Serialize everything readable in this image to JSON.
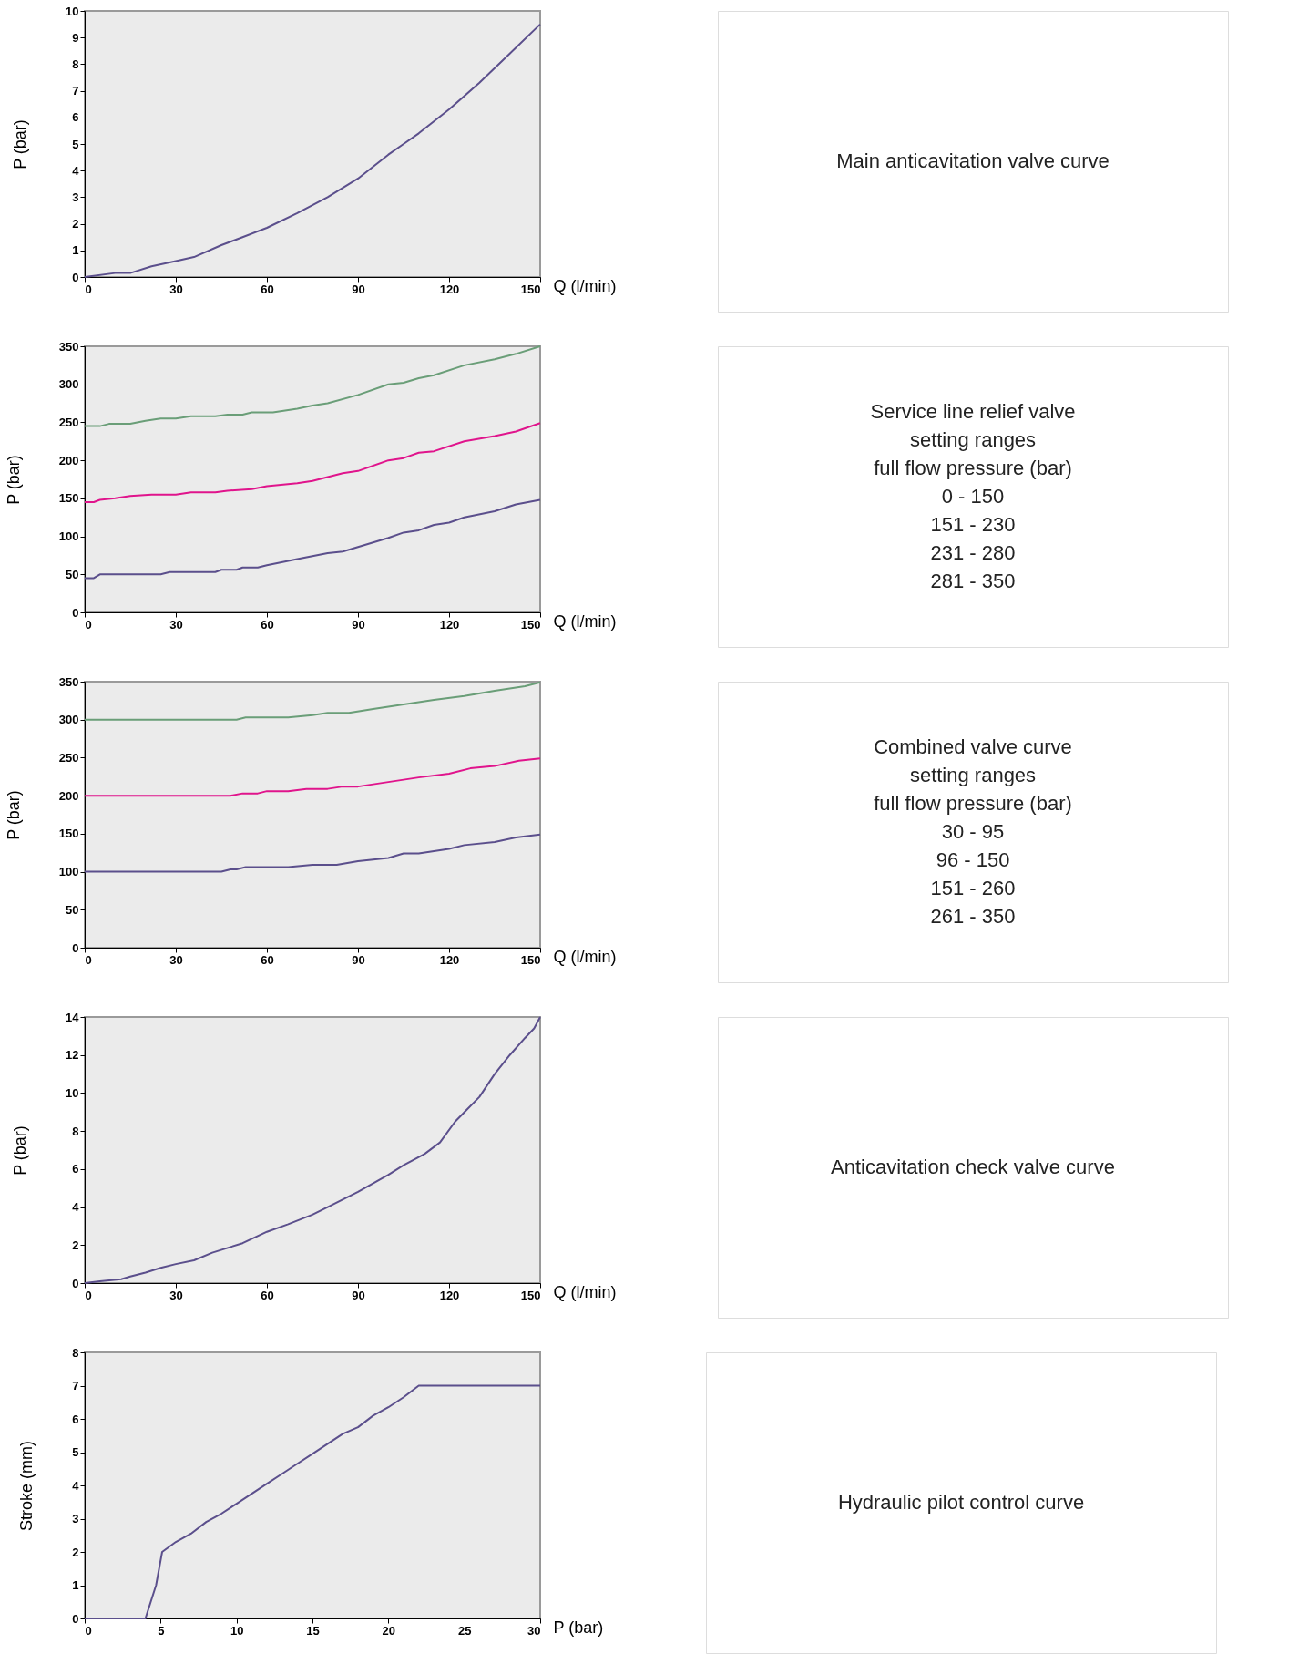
{
  "chart_data": [
    {
      "type": "line",
      "xlabel": "Q (l/min)",
      "ylabel": "P (bar)",
      "xlim": [
        0,
        150
      ],
      "ylim": [
        0,
        10
      ],
      "xticks": [
        0,
        30,
        60,
        90,
        120,
        150
      ],
      "yticks": [
        0,
        1,
        2,
        3,
        4,
        5,
        6,
        7,
        8,
        9,
        10
      ],
      "grid": false,
      "legend": false,
      "series": [
        {
          "color": "#5b4f8c",
          "x": [
            0,
            10,
            15,
            22,
            30,
            36,
            45,
            52,
            60,
            70,
            80,
            90,
            100,
            105,
            110,
            120,
            130,
            140,
            150
          ],
          "values": [
            0,
            0.15,
            0.15,
            0.4,
            0.6,
            0.75,
            1.2,
            1.5,
            1.85,
            2.4,
            3.0,
            3.7,
            4.6,
            5.0,
            5.4,
            6.3,
            7.3,
            8.4,
            9.5
          ]
        }
      ]
    },
    {
      "type": "other",
      "annotations": [
        "Main anticavitation valve curve"
      ]
    },
    {
      "type": "line",
      "xlabel": "Q (l/min)",
      "ylabel": "P (bar)",
      "xlim": [
        0,
        150
      ],
      "ylim": [
        0,
        350
      ],
      "xticks": [
        0,
        30,
        60,
        90,
        120,
        150
      ],
      "yticks": [
        0,
        50,
        100,
        150,
        200,
        250,
        300,
        350
      ],
      "grid": false,
      "legend": false,
      "series": [
        {
          "color": "#5b4f8c",
          "x": [
            0,
            3,
            5,
            25,
            28,
            43,
            45,
            50,
            52,
            57,
            60,
            70,
            80,
            85,
            90,
            100,
            105,
            110,
            115,
            120,
            125,
            135,
            142,
            150
          ],
          "values": [
            45,
            45,
            50,
            50,
            53,
            53,
            56,
            56,
            59,
            59,
            62,
            70,
            78,
            80,
            86,
            98,
            105,
            108,
            115,
            118,
            125,
            133,
            142,
            148
          ]
        },
        {
          "color": "#e0148c",
          "x": [
            0,
            3,
            5,
            10,
            15,
            22,
            30,
            35,
            43,
            47,
            55,
            60,
            70,
            75,
            85,
            90,
            100,
            105,
            110,
            115,
            125,
            135,
            142,
            150
          ],
          "values": [
            145,
            145,
            148,
            150,
            153,
            155,
            155,
            158,
            158,
            160,
            162,
            166,
            170,
            173,
            183,
            186,
            200,
            203,
            210,
            212,
            225,
            232,
            238,
            249
          ]
        },
        {
          "color": "#6a9e78",
          "x": [
            0,
            5,
            8,
            15,
            20,
            25,
            30,
            35,
            43,
            47,
            52,
            55,
            62,
            70,
            75,
            80,
            90,
            100,
            105,
            110,
            115,
            125,
            135,
            142,
            150
          ],
          "values": [
            245,
            245,
            248,
            248,
            252,
            255,
            255,
            258,
            258,
            260,
            260,
            263,
            263,
            268,
            272,
            275,
            286,
            300,
            302,
            308,
            312,
            325,
            333,
            340,
            350
          ]
        }
      ]
    },
    {
      "type": "other",
      "annotations": [
        "Service line relief valve",
        "setting ranges",
        "full flow pressure (bar)",
        "0 - 150",
        "151 - 230",
        "231 - 280",
        "281 - 350"
      ]
    },
    {
      "type": "line",
      "xlabel": "Q (l/min)",
      "ylabel": "P (bar)",
      "xlim": [
        0,
        150
      ],
      "ylim": [
        0,
        350
      ],
      "xticks": [
        0,
        30,
        60,
        90,
        120,
        150
      ],
      "yticks": [
        0,
        50,
        100,
        150,
        200,
        250,
        300,
        350
      ],
      "grid": false,
      "legend": false,
      "series": [
        {
          "color": "#5b4f8c",
          "x": [
            0,
            45,
            48,
            50,
            53,
            67,
            75,
            83,
            90,
            100,
            105,
            110,
            120,
            125,
            135,
            142,
            150
          ],
          "values": [
            100,
            100,
            103,
            103,
            106,
            106,
            109,
            109,
            114,
            118,
            124,
            124,
            130,
            135,
            139,
            145,
            149
          ]
        },
        {
          "color": "#e0148c",
          "x": [
            0,
            48,
            52,
            57,
            60,
            67,
            73,
            80,
            85,
            90,
            100,
            110,
            120,
            127,
            135,
            143,
            150
          ],
          "values": [
            200,
            200,
            203,
            203,
            206,
            206,
            209,
            209,
            212,
            212,
            218,
            224,
            229,
            236,
            239,
            246,
            249
          ]
        },
        {
          "color": "#6a9e78",
          "x": [
            0,
            50,
            53,
            67,
            75,
            80,
            87,
            95,
            105,
            115,
            125,
            135,
            145,
            150
          ],
          "values": [
            300,
            300,
            303,
            303,
            306,
            309,
            309,
            314,
            320,
            326,
            331,
            338,
            344,
            349
          ]
        }
      ]
    },
    {
      "type": "other",
      "annotations": [
        "Combined valve curve",
        "setting ranges",
        "full flow pressure (bar)",
        "30 - 95",
        "96 - 150",
        "151 - 260",
        "261 - 350"
      ]
    },
    {
      "type": "line",
      "xlabel": "Q (l/min)",
      "ylabel": "P (bar)",
      "xlim": [
        0,
        150
      ],
      "ylim": [
        0,
        14
      ],
      "xticks": [
        0,
        30,
        60,
        90,
        120,
        150
      ],
      "yticks": [
        0,
        2,
        4,
        6,
        8,
        10,
        12,
        14
      ],
      "grid": false,
      "legend": false,
      "series": [
        {
          "color": "#5b4f8c",
          "x": [
            0,
            5,
            12,
            15,
            20,
            25,
            30,
            36,
            42,
            52,
            60,
            67,
            75,
            80,
            90,
            100,
            105,
            112,
            117,
            122,
            130,
            135,
            140,
            145,
            148,
            150
          ],
          "values": [
            0,
            0.1,
            0.2,
            0.35,
            0.55,
            0.8,
            1.0,
            1.2,
            1.6,
            2.1,
            2.7,
            3.1,
            3.6,
            4.0,
            4.8,
            5.7,
            6.2,
            6.8,
            7.4,
            8.5,
            9.8,
            11,
            12,
            12.9,
            13.4,
            14
          ]
        }
      ]
    },
    {
      "type": "other",
      "annotations": [
        "Anticavitation check valve curve"
      ]
    },
    {
      "type": "line",
      "xlabel": "P (bar)",
      "ylabel": "Stroke (mm)",
      "xlim": [
        0,
        30
      ],
      "ylim": [
        0,
        8
      ],
      "xticks": [
        0,
        5,
        10,
        15,
        20,
        25,
        30
      ],
      "yticks": [
        0,
        1,
        2,
        3,
        4,
        5,
        6,
        7,
        8
      ],
      "grid": false,
      "legend": false,
      "series": [
        {
          "color": "#5b4f8c",
          "x": [
            0,
            4,
            4.7,
            5.1,
            6,
            7,
            8,
            9,
            10,
            11,
            12,
            13,
            14,
            15,
            16,
            17,
            18,
            19,
            20,
            21,
            22,
            30
          ],
          "values": [
            0,
            0,
            1,
            2,
            2.3,
            2.55,
            2.9,
            3.15,
            3.45,
            3.75,
            4.05,
            4.35,
            4.65,
            4.95,
            5.25,
            5.55,
            5.75,
            6.1,
            6.35,
            6.65,
            7,
            7
          ]
        }
      ]
    },
    {
      "type": "other",
      "annotations": [
        "Hydraulic pilot control curve"
      ]
    }
  ]
}
